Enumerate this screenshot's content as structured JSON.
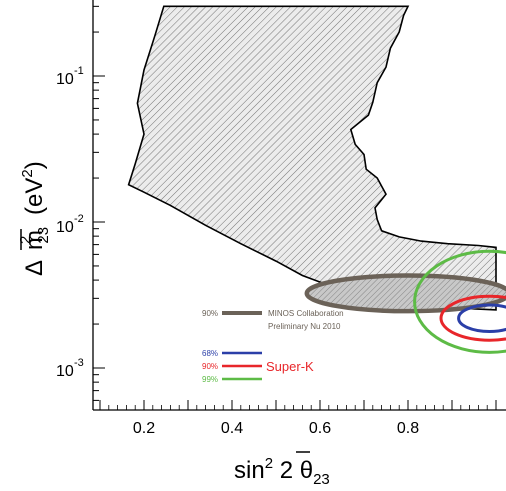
{
  "chart_data": {
    "type": "contour",
    "title": "",
    "x_scale": "linear",
    "y_scale": "log",
    "xlim": [
      0.1,
      1.0
    ],
    "ylim": [
      0.0005,
      0.3
    ],
    "x_ticks": [
      0.2,
      0.4,
      0.6,
      0.8
    ],
    "x_tick_labels": [
      "0.2",
      "0.4",
      "0.6",
      "0.8"
    ],
    "y_ticks": [
      0.001,
      0.01,
      0.1
    ],
    "y_tick_labels": [
      {
        "base": "10",
        "exp": "-3"
      },
      {
        "base": "10",
        "exp": "-2"
      },
      {
        "base": "10",
        "exp": "-1"
      }
    ],
    "xlabel": {
      "main": "sin",
      "sup": "2",
      "mid": " 2 ",
      "sym": "θ",
      "sub": "23"
    },
    "ylabel": {
      "delta": "Δ",
      "sym": "m",
      "sup": "2",
      "sub": "23",
      "unit": "(eV",
      "unit_sup": "2",
      "unit_close": ")"
    },
    "colors": {
      "minos": "#6b6258",
      "minos_fill": "#cfcfcf",
      "excluded": "#000000",
      "sk68": "#2b3fa8",
      "sk90": "#e8262a",
      "sk99": "#5dbb46"
    },
    "excluded_region_boundary": [
      [
        0.245,
        0.3
      ],
      [
        0.225,
        0.19
      ],
      [
        0.2,
        0.11
      ],
      [
        0.185,
        0.065
      ],
      [
        0.2,
        0.04
      ],
      [
        0.18,
        0.025
      ],
      [
        0.165,
        0.018
      ],
      [
        0.2,
        0.016
      ],
      [
        0.26,
        0.013
      ],
      [
        0.34,
        0.0095
      ],
      [
        0.42,
        0.0071
      ],
      [
        0.5,
        0.0054
      ],
      [
        0.56,
        0.0043
      ],
      [
        0.64,
        0.0035
      ],
      [
        0.72,
        0.0031
      ],
      [
        0.8,
        0.0028
      ],
      [
        0.88,
        0.0026
      ],
      [
        1.0,
        0.0025
      ],
      [
        1.0,
        0.0067
      ],
      [
        0.96,
        0.0069
      ],
      [
        0.89,
        0.0071
      ],
      [
        0.83,
        0.0074
      ],
      [
        0.78,
        0.0079
      ],
      [
        0.74,
        0.0087
      ],
      [
        0.73,
        0.0104
      ],
      [
        0.725,
        0.0125
      ],
      [
        0.75,
        0.0155
      ],
      [
        0.73,
        0.02
      ],
      [
        0.705,
        0.023
      ],
      [
        0.7,
        0.029
      ],
      [
        0.68,
        0.034
      ],
      [
        0.67,
        0.043
      ],
      [
        0.71,
        0.054
      ],
      [
        0.72,
        0.066
      ],
      [
        0.73,
        0.09
      ],
      [
        0.75,
        0.115
      ],
      [
        0.76,
        0.155
      ],
      [
        0.78,
        0.2
      ],
      [
        0.79,
        0.26
      ],
      [
        0.8,
        0.3
      ]
    ],
    "series": [
      {
        "name": "MINOS Collaboration Preliminary Nu 2010",
        "level": "90%",
        "type": "ellipse",
        "center": [
          0.8,
          0.0032
        ],
        "rx": 0.23,
        "y_range": [
          0.00245,
          0.0043
        ]
      },
      {
        "level": "68%",
        "type": "ellipse",
        "center": [
          0.985,
          0.0022
        ],
        "rx": 0.07,
        "y_range": [
          0.00178,
          0.0027
        ]
      },
      {
        "level": "90%",
        "type": "ellipse",
        "center": [
          0.985,
          0.0022
        ],
        "rx": 0.11,
        "y_range": [
          0.00155,
          0.0031
        ]
      },
      {
        "level": "99%",
        "type": "ellipse",
        "center": [
          0.985,
          0.0023
        ],
        "rx": 0.17,
        "y_range": [
          0.00128,
          0.0063
        ]
      }
    ]
  },
  "legend": {
    "minos_level": "90%",
    "minos_line1": "MINOS Collaboration",
    "minos_line2": "Preliminary Nu 2010",
    "sk_levels": [
      "68%",
      "90%",
      "99%"
    ],
    "sk_label": "Super-K"
  }
}
